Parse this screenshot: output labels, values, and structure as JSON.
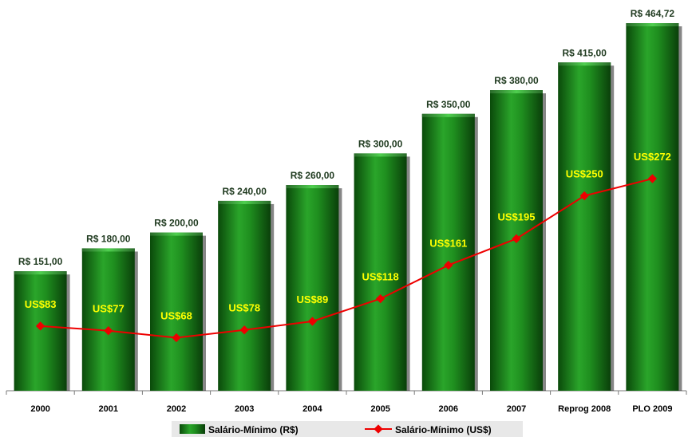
{
  "colors": {
    "bar_dark": "#0a4a0a",
    "bar_mid": "#1f8f1f",
    "bar_light": "#3cc43c",
    "line": "#ee0000",
    "usd_label": "#ffff00",
    "legend_bg": "#e8e8e8"
  },
  "chart_data": {
    "type": "bar",
    "categories": [
      "2000",
      "2001",
      "2002",
      "2003",
      "2004",
      "2005",
      "2006",
      "2007",
      "Reprog 2008",
      "PLO 2009"
    ],
    "series": [
      {
        "name": "Salário-Mínimo (R$)",
        "type": "bar",
        "values": [
          151.0,
          180.0,
          200.0,
          240.0,
          260.0,
          300.0,
          350.0,
          380.0,
          415.0,
          464.72
        ],
        "labels": [
          "R$ 151,00",
          "R$ 180,00",
          "R$ 200,00",
          "R$ 240,00",
          "R$ 260,00",
          "R$ 300,00",
          "R$ 350,00",
          "R$ 380,00",
          "R$ 415,00",
          "R$ 464,72"
        ]
      },
      {
        "name": "Salário-Mínimo (US$)",
        "type": "line",
        "values": [
          83,
          77,
          68,
          78,
          89,
          118,
          161,
          195,
          250,
          272
        ],
        "labels": [
          "US$83",
          "US$77",
          "US$68",
          "US$78",
          "US$89",
          "US$118",
          "US$161",
          "US$195",
          "US$250",
          "US$272"
        ]
      }
    ],
    "legend_position": "bottom",
    "grid": false
  }
}
